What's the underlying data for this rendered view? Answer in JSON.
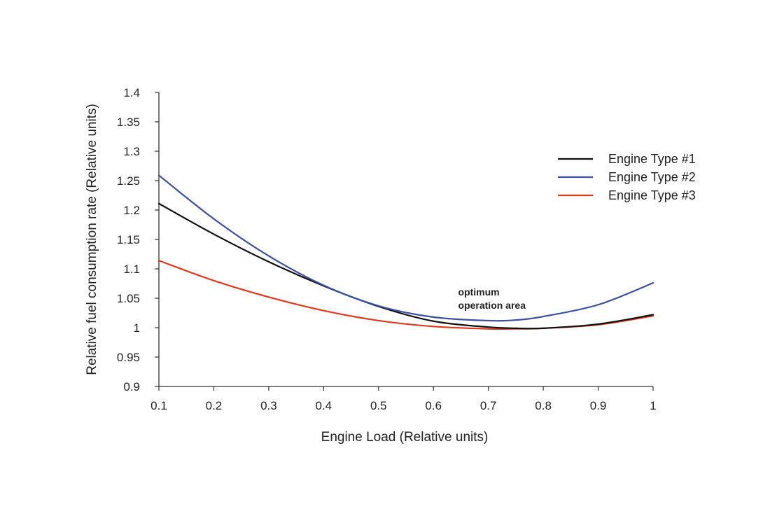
{
  "chart_data": {
    "type": "line",
    "xlabel": "Engine Load (Relative units)",
    "ylabel": "Relative fuel consumption rate (Relative units)",
    "xlim": [
      0.1,
      1.0
    ],
    "ylim": [
      0.9,
      1.4
    ],
    "xticks": [
      0.1,
      0.2,
      0.3,
      0.4,
      0.5,
      0.6,
      0.7,
      0.8,
      0.9,
      1.0
    ],
    "xtick_labels": [
      "0.1",
      "0.2",
      "0.3",
      "0.4",
      "0.5",
      "0.6",
      "0.7",
      "0.8",
      "0.9",
      "1"
    ],
    "yticks": [
      0.9,
      0.95,
      1.0,
      1.05,
      1.1,
      1.15,
      1.2,
      1.25,
      1.3,
      1.35,
      1.4
    ],
    "ytick_labels": [
      "0.9",
      "0.95",
      "1",
      "1.05",
      "1.1",
      "1.15",
      "1.2",
      "1.25",
      "1.3",
      "1.35",
      "1.4"
    ],
    "grid": false,
    "legend_position": "top-right",
    "x": [
      0.1,
      0.2,
      0.3,
      0.4,
      0.5,
      0.6,
      0.7,
      0.75,
      0.8,
      0.9,
      1.0
    ],
    "series": [
      {
        "name": "Engine Type #1",
        "color": "#111111",
        "values": [
          1.211,
          1.159,
          1.112,
          1.071,
          1.036,
          1.011,
          1.001,
          0.999,
          0.999,
          1.006,
          1.022
        ]
      },
      {
        "name": "Engine Type #2",
        "color": "#3a4f9e",
        "values": [
          1.259,
          1.185,
          1.122,
          1.072,
          1.037,
          1.018,
          1.012,
          1.013,
          1.019,
          1.039,
          1.076
        ]
      },
      {
        "name": "Engine Type #3",
        "color": "#e0381d",
        "values": [
          1.114,
          1.08,
          1.052,
          1.029,
          1.012,
          1.002,
          0.998,
          0.998,
          0.999,
          1.005,
          1.02
        ]
      }
    ],
    "annotations": [
      {
        "text": "optimum",
        "x": 0.645,
        "y": 1.055
      },
      {
        "text": "operation area",
        "x": 0.645,
        "y": 1.032
      }
    ]
  }
}
